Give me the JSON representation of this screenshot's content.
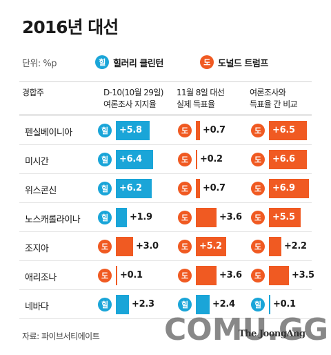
{
  "title": "2016년 대선",
  "legend": {
    "unit": "단위: %p",
    "clinton_badge": "힐",
    "clinton_label": "힐러리 클린턴",
    "trump_badge": "도",
    "trump_label": "도널드 트럼프"
  },
  "colors": {
    "clinton": "#1aa5d8",
    "trump": "#f05a22"
  },
  "headers": {
    "state": "경합주",
    "poll_line1": "D-10(10월 29일)",
    "poll_line2": "여론조사 지지율",
    "result_line1": "11월 8일 대선",
    "result_line2": "실제 득표율",
    "diff_line1": "여론조사와",
    "diff_line2": "득표율 간 비교"
  },
  "chart_data": {
    "type": "table",
    "columns": [
      "D-10(10월 29일) 여론조사 지지율",
      "11월 8일 대선 실제 득표율",
      "여론조사와 득표율 간 비교"
    ],
    "rows": [
      {
        "state": "펜실베이니아",
        "poll": {
          "leader": "힐",
          "value": "+5.8",
          "margin": 5.8
        },
        "result": {
          "leader": "도",
          "value": "+0.7",
          "margin": 0.7
        },
        "diff": {
          "leader": "도",
          "value": "+6.5",
          "margin": 6.5
        }
      },
      {
        "state": "미시간",
        "poll": {
          "leader": "힐",
          "value": "+6.4",
          "margin": 6.4
        },
        "result": {
          "leader": "도",
          "value": "+0.2",
          "margin": 0.2
        },
        "diff": {
          "leader": "도",
          "value": "+6.6",
          "margin": 6.6
        }
      },
      {
        "state": "위스콘신",
        "poll": {
          "leader": "힐",
          "value": "+6.2",
          "margin": 6.2
        },
        "result": {
          "leader": "도",
          "value": "+0.7",
          "margin": 0.7
        },
        "diff": {
          "leader": "도",
          "value": "+6.9",
          "margin": 6.9
        }
      },
      {
        "state": "노스캐롤라이나",
        "poll": {
          "leader": "힐",
          "value": "+1.9",
          "margin": 1.9
        },
        "result": {
          "leader": "도",
          "value": "+3.6",
          "margin": 3.6
        },
        "diff": {
          "leader": "도",
          "value": "+5.5",
          "margin": 5.5
        }
      },
      {
        "state": "조지아",
        "poll": {
          "leader": "도",
          "value": "+3.0",
          "margin": 3.0
        },
        "result": {
          "leader": "도",
          "value": "+5.2",
          "margin": 5.2
        },
        "diff": {
          "leader": "도",
          "value": "+2.2",
          "margin": 2.2
        }
      },
      {
        "state": "애리조나",
        "poll": {
          "leader": "도",
          "value": "+0.1",
          "margin": 0.1
        },
        "result": {
          "leader": "도",
          "value": "+3.6",
          "margin": 3.6
        },
        "diff": {
          "leader": "도",
          "value": "+3.5",
          "margin": 3.5
        }
      },
      {
        "state": "네바다",
        "poll": {
          "leader": "힐",
          "value": "+2.3",
          "margin": 2.3
        },
        "result": {
          "leader": "힐",
          "value": "+2.4",
          "margin": 2.4
        },
        "diff": {
          "leader": "힐",
          "value": "+0.1",
          "margin": 0.1
        }
      }
    ]
  },
  "source": "자료: 파이브서티에이트",
  "watermark": "COMU.GG",
  "publisher": "The JoongAng"
}
